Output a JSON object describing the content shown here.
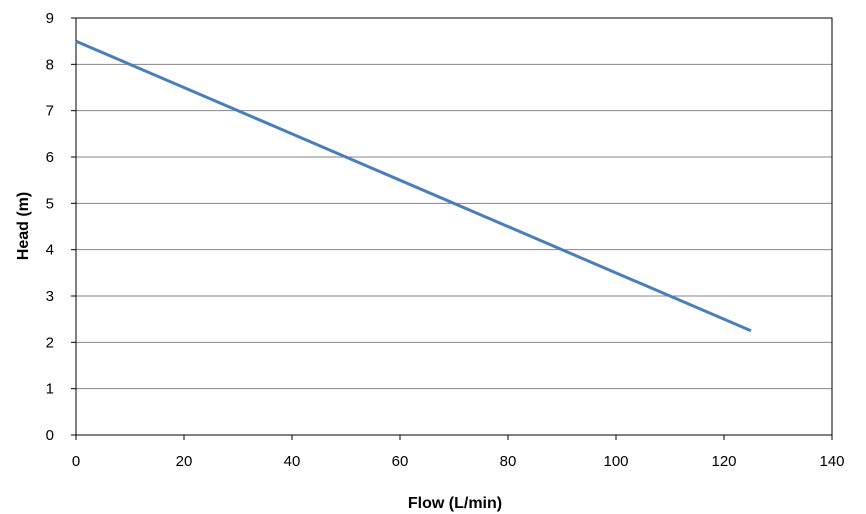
{
  "chart_data": {
    "type": "line",
    "title": "",
    "xlabel": "Flow (L/min)",
    "ylabel": "Head (m)",
    "xlim": [
      0,
      140
    ],
    "ylim": [
      0,
      9
    ],
    "x_ticks": [
      0,
      20,
      40,
      60,
      80,
      100,
      120,
      140
    ],
    "y_ticks": [
      0,
      1,
      2,
      3,
      4,
      5,
      6,
      7,
      8,
      9
    ],
    "grid": "horizontal",
    "legend": "none",
    "series": [
      {
        "color": "#4a7ebb",
        "points": [
          [
            0,
            8.5
          ],
          [
            125,
            2.25
          ]
        ]
      }
    ]
  }
}
